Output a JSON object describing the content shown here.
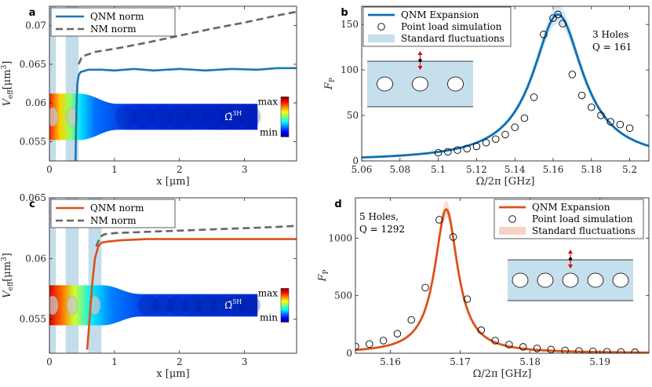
{
  "chart_data": [
    {
      "id": "a",
      "type": "line",
      "panel_letter": "a",
      "xlabel": "x [μm]",
      "ylabel": "V_eff [μm³]",
      "xlim": [
        0,
        3.8
      ],
      "ylim": [
        0.0525,
        0.0725
      ],
      "x_ticks": [
        0,
        1,
        2,
        3
      ],
      "x_tick_labels": [
        "0",
        "1",
        "2",
        "3"
      ],
      "y_ticks": [
        0.055,
        0.06,
        0.065,
        0.07
      ],
      "y_tick_labels": [
        "0.055",
        "0.06",
        "0.065",
        "0.07"
      ],
      "hole_bands": [
        [
          0,
          0.1
        ],
        [
          0.25,
          0.45
        ]
      ],
      "series": [
        {
          "name": "QNM norm",
          "color": "#1f77b4",
          "style": "solid",
          "x": [
            0.4,
            0.41,
            0.42,
            0.43,
            0.45,
            0.48,
            0.52,
            0.6,
            0.8,
            1.0,
            1.3,
            1.6,
            2.0,
            2.4,
            2.8,
            3.2,
            3.5,
            3.8
          ],
          "y": [
            0.0525,
            0.057,
            0.0605,
            0.0625,
            0.0636,
            0.064,
            0.0641,
            0.0643,
            0.0643,
            0.0642,
            0.0644,
            0.0642,
            0.0644,
            0.0642,
            0.0644,
            0.0643,
            0.0645,
            0.0645
          ]
        },
        {
          "name": "NM norm",
          "color": "#666666",
          "style": "dashed",
          "x": [
            0.45,
            0.5,
            0.6,
            0.7,
            1.0,
            1.5,
            2.0,
            2.5,
            3.0,
            3.5,
            3.8
          ],
          "y": [
            0.065,
            0.066,
            0.0663,
            0.0666,
            0.067,
            0.0678,
            0.0687,
            0.0696,
            0.0704,
            0.0713,
            0.0718
          ]
        }
      ],
      "map": {
        "x_range": [
          0,
          3.2
        ],
        "y_range": [
          0.0552,
          0.0612
        ],
        "label": "Ω̃",
        "sup": "3H"
      },
      "colorbar": {
        "max": "max",
        "min": "min"
      }
    },
    {
      "id": "b",
      "type": "line",
      "panel_letter": "b",
      "xlabel": "Ω/2π [GHz]",
      "ylabel": "F_P",
      "xlim": [
        5.06,
        5.21
      ],
      "ylim": [
        0,
        170
      ],
      "x_ticks": [
        5.06,
        5.08,
        5.1,
        5.12,
        5.14,
        5.16,
        5.18,
        5.2
      ],
      "x_tick_labels": [
        "5.06",
        "5.08",
        "5.1",
        "5.12",
        "5.14",
        "5.16",
        "5.18",
        "5.2"
      ],
      "y_ticks": [
        0,
        50,
        100,
        150
      ],
      "y_tick_labels": [
        "0",
        "50",
        "100",
        "150"
      ],
      "legend": [
        "QNM Expansion",
        "Point load simulation",
        "Standard fluctuations"
      ],
      "annotation": [
        "3 Holes",
        "Q = 161"
      ],
      "series": [
        {
          "name": "QNM Expansion",
          "color": "#0f6fb4",
          "f0": 5.1625,
          "Q": 161,
          "peak": 161
        },
        {
          "name": "Point load simulation",
          "x": [
            5.1,
            5.105,
            5.11,
            5.115,
            5.12,
            5.125,
            5.13,
            5.135,
            5.14,
            5.145,
            5.15,
            5.155,
            5.16,
            5.1625,
            5.165,
            5.17,
            5.175,
            5.18,
            5.185,
            5.19,
            5.195,
            5.2
          ],
          "y": [
            9,
            10,
            12,
            13.5,
            16,
            20,
            24,
            29,
            37,
            47,
            70,
            139,
            157,
            161,
            151,
            95,
            72,
            59,
            50,
            43,
            40,
            36
          ]
        }
      ]
    },
    {
      "id": "c",
      "type": "line",
      "panel_letter": "c",
      "xlabel": "x [μm]",
      "ylabel": "V_eff [μm³]",
      "xlim": [
        0,
        3.8
      ],
      "ylim": [
        0.0522,
        0.065
      ],
      "x_ticks": [
        0,
        1,
        2,
        3
      ],
      "x_tick_labels": [
        "0",
        "1",
        "2",
        "3"
      ],
      "y_ticks": [
        0.055,
        0.06,
        0.065
      ],
      "y_tick_labels": [
        "0.055",
        "0.06",
        "0.065"
      ],
      "hole_bands": [
        [
          0,
          0.1
        ],
        [
          0.25,
          0.45
        ],
        [
          0.6,
          0.8
        ]
      ],
      "series": [
        {
          "name": "QNM norm",
          "color": "#d95319",
          "style": "solid",
          "x": [
            0.58,
            0.62,
            0.66,
            0.7,
            0.75,
            0.8,
            0.9,
            1.1,
            1.5,
            2.0,
            2.5,
            3.0,
            3.5,
            3.8
          ],
          "y": [
            0.0525,
            0.0552,
            0.058,
            0.06,
            0.061,
            0.0613,
            0.0614,
            0.0615,
            0.0616,
            0.0616,
            0.0616,
            0.0616,
            0.0616,
            0.0616
          ]
        },
        {
          "name": "NM norm",
          "color": "#666666",
          "style": "dashed",
          "x": [
            0.72,
            0.78,
            0.85,
            1.0,
            1.5,
            2.0,
            2.5,
            3.0,
            3.5,
            3.8
          ],
          "y": [
            0.061,
            0.0618,
            0.062,
            0.0621,
            0.0622,
            0.0623,
            0.0624,
            0.0625,
            0.0626,
            0.0627
          ]
        }
      ],
      "map": {
        "x_range": [
          0,
          3.2
        ],
        "y_range": [
          0.0545,
          0.0578
        ],
        "label": "Ω̃",
        "sup": "5H"
      },
      "colorbar": {
        "max": "max",
        "min": "min"
      }
    },
    {
      "id": "d",
      "type": "line",
      "panel_letter": "d",
      "xlabel": "Ω/2π [GHz]",
      "ylabel": "F_P",
      "xlim": [
        5.155,
        5.197
      ],
      "ylim": [
        0,
        1350
      ],
      "x_ticks": [
        5.16,
        5.17,
        5.18,
        5.19
      ],
      "x_tick_labels": [
        "5.16",
        "5.17",
        "5.18",
        "5.19"
      ],
      "y_ticks": [
        0,
        500,
        1000
      ],
      "y_tick_labels": [
        "0",
        "500",
        "1000"
      ],
      "legend": [
        "QNM Expansion",
        "Point load simulation",
        "Standard fluctuations"
      ],
      "annotation": [
        "5 Holes,",
        "Q = 1292"
      ],
      "series": [
        {
          "name": "QNM Expansion",
          "color": "#d95319",
          "f0": 5.168,
          "Q": 1292,
          "peak": 1250
        },
        {
          "name": "Point load simulation",
          "x": [
            5.155,
            5.157,
            5.159,
            5.161,
            5.163,
            5.165,
            5.167,
            5.169,
            5.171,
            5.173,
            5.175,
            5.177,
            5.179,
            5.181,
            5.183,
            5.185,
            5.187,
            5.189,
            5.191,
            5.193,
            5.195
          ],
          "y": [
            60,
            80,
            110,
            170,
            290,
            570,
            1160,
            1010,
            470,
            200,
            110,
            75,
            55,
            42,
            32,
            25,
            20,
            16,
            13,
            11,
            9
          ]
        }
      ]
    }
  ]
}
